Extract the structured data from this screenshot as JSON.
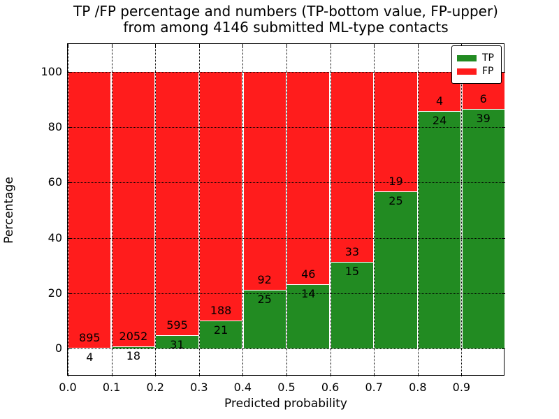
{
  "title": {
    "line1": "TP /FP percentage and numbers (TP-bottom value, FP-upper)",
    "line2": "from among 4146 submitted ML-type contacts"
  },
  "chart_data": {
    "type": "bar",
    "stacked": true,
    "title": "TP /FP percentage and numbers (TP-bottom value, FP-upper)\nfrom among 4146 submitted ML-type contacts",
    "xlabel": "Predicted probability",
    "ylabel": "Percentage",
    "total_contacts": 4146,
    "x_tick_labels": [
      "0.0",
      "0.1",
      "0.2",
      "0.3",
      "0.4",
      "0.5",
      "0.6",
      "0.7",
      "0.8",
      "0.9"
    ],
    "y_ticks": [
      0,
      20,
      40,
      60,
      80,
      100
    ],
    "ylim": [
      -10,
      110
    ],
    "xlim": [
      0.0,
      1.0
    ],
    "bin_width": 0.1,
    "categories": [
      "0.0-0.1",
      "0.1-0.2",
      "0.2-0.3",
      "0.3-0.4",
      "0.4-0.5",
      "0.5-0.6",
      "0.6-0.7",
      "0.7-0.8",
      "0.8-0.9",
      "0.9-1.0"
    ],
    "series": [
      {
        "name": "TP",
        "color": "#228b22",
        "counts": [
          4,
          18,
          31,
          21,
          25,
          14,
          15,
          25,
          24,
          39
        ]
      },
      {
        "name": "FP",
        "color": "#ff1c1c",
        "counts": [
          895,
          2052,
          595,
          188,
          92,
          46,
          33,
          19,
          4,
          6
        ]
      }
    ],
    "tp_percentages": [
      0.44,
      0.87,
      4.95,
      10.05,
      21.37,
      23.33,
      31.25,
      56.82,
      85.71,
      86.67
    ],
    "grid": "dotted",
    "legend_position": "upper right",
    "colors": {
      "tp": "#228b22",
      "fp": "#ff1c1c",
      "grid": "#000000",
      "background": "#ffffff"
    }
  }
}
